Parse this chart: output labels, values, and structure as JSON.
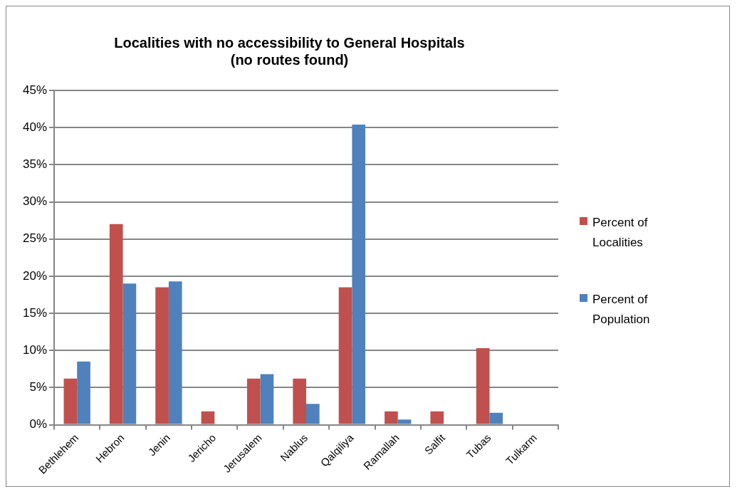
{
  "chart_data": {
    "type": "bar",
    "title": [
      "Localities with no accessibility to General Hospitals",
      "(no routes found)"
    ],
    "categories": [
      "Bethlehem",
      "Hebron",
      "Jenin",
      "Jericho",
      "Jerusalem",
      "Nablus",
      "Qalqiliya",
      "Ramallah",
      "Salfit",
      "Tubas",
      "Tulkarm"
    ],
    "series": [
      {
        "name": "Percent of Localities",
        "color": "#c0504d",
        "values": [
          6.2,
          27.0,
          18.5,
          1.8,
          6.2,
          6.2,
          18.5,
          1.8,
          1.8,
          10.3,
          0
        ]
      },
      {
        "name": "Percent of Population",
        "color": "#4f81bd",
        "values": [
          8.5,
          19.0,
          19.3,
          0,
          6.8,
          2.8,
          40.4,
          0.7,
          0,
          1.6,
          0
        ]
      }
    ],
    "ylim": [
      0,
      45
    ],
    "yticks": [
      {
        "value": 0,
        "label": "0%"
      },
      {
        "value": 5,
        "label": "5%"
      },
      {
        "value": 10,
        "label": "10%"
      },
      {
        "value": 15,
        "label": "15%"
      },
      {
        "value": 20,
        "label": "20%"
      },
      {
        "value": 25,
        "label": "25%"
      },
      {
        "value": 30,
        "label": "30%"
      },
      {
        "value": 35,
        "label": "35%"
      },
      {
        "value": 40,
        "label": "40%"
      },
      {
        "value": 45,
        "label": "45%"
      }
    ],
    "grid": "y",
    "legend": "right"
  }
}
